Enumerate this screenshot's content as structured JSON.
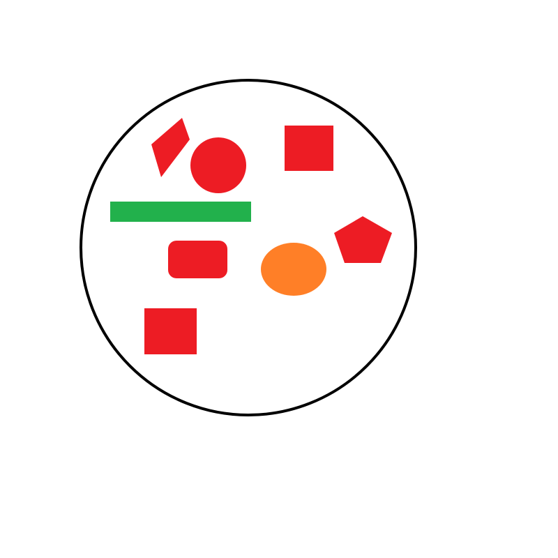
{
  "colors": {
    "background": "#ffffff",
    "outline": "#000000",
    "red": "#ed1c24",
    "green": "#22b14c",
    "orange": "#ff7f27"
  },
  "shapes": [
    {
      "kind": "parallelogram",
      "color": "red"
    },
    {
      "kind": "circle",
      "color": "red"
    },
    {
      "kind": "square",
      "color": "red"
    },
    {
      "kind": "bar",
      "color": "green"
    },
    {
      "kind": "rounded-rectangle",
      "color": "red"
    },
    {
      "kind": "ellipse",
      "color": "orange"
    },
    {
      "kind": "pentagon",
      "color": "red"
    },
    {
      "kind": "square",
      "color": "red"
    }
  ]
}
